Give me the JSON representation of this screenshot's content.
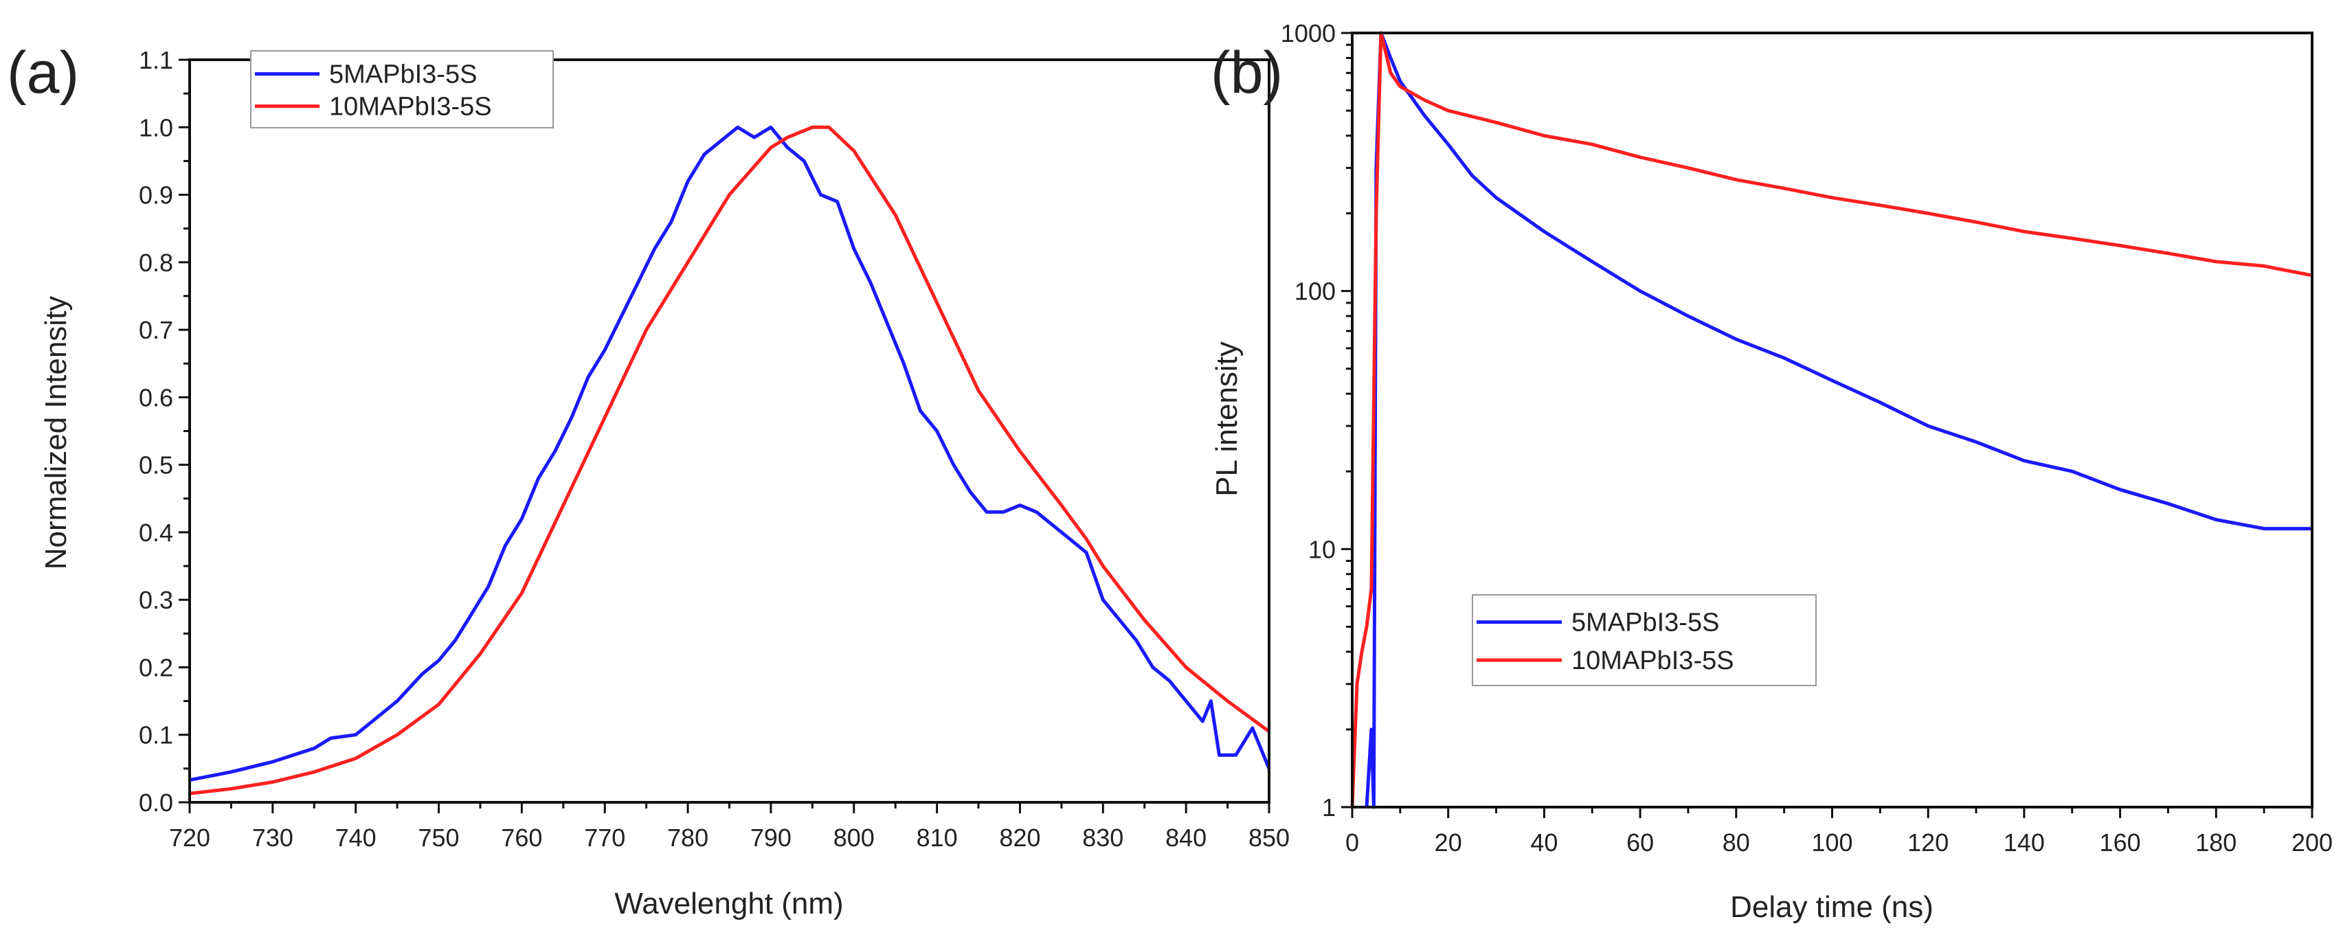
{
  "chart_data": [
    {
      "panel_label": "(a)",
      "type": "line",
      "xlabel": "Wavelenght (nm)",
      "ylabel": "Normalized Intensity",
      "xlim": [
        720,
        850
      ],
      "ylim": [
        0.0,
        1.1
      ],
      "xticks": [
        720,
        730,
        740,
        750,
        760,
        770,
        780,
        790,
        800,
        810,
        820,
        830,
        840,
        850
      ],
      "yticks": [
        "0.0",
        "0.1",
        "0.2",
        "0.3",
        "0.4",
        "0.5",
        "0.6",
        "0.7",
        "0.8",
        "0.9",
        "1.0",
        "1.1"
      ],
      "grid": false,
      "legend_placement": "top-left",
      "series": [
        {
          "name": "5MAPbI3-5S",
          "color": "#1a1aff",
          "x": [
            720,
            725,
            730,
            735,
            737,
            740,
            742,
            745,
            748,
            750,
            752,
            754,
            756,
            758,
            760,
            762,
            764,
            766,
            768,
            770,
            772,
            774,
            776,
            778,
            780,
            782,
            784,
            786,
            788,
            790,
            792,
            794,
            796,
            798,
            800,
            802,
            804,
            806,
            808,
            810,
            812,
            814,
            816,
            818,
            820,
            822,
            824,
            826,
            828,
            830,
            832,
            834,
            836,
            838,
            840,
            842,
            843,
            844,
            846,
            848,
            850
          ],
          "y": [
            0.033,
            0.045,
            0.06,
            0.08,
            0.095,
            0.1,
            0.12,
            0.15,
            0.19,
            0.21,
            0.24,
            0.28,
            0.32,
            0.38,
            0.42,
            0.48,
            0.52,
            0.57,
            0.63,
            0.67,
            0.72,
            0.77,
            0.82,
            0.86,
            0.92,
            0.96,
            0.98,
            1.0,
            0.985,
            1.0,
            0.97,
            0.95,
            0.9,
            0.89,
            0.82,
            0.77,
            0.71,
            0.65,
            0.58,
            0.55,
            0.5,
            0.46,
            0.43,
            0.43,
            0.44,
            0.43,
            0.41,
            0.39,
            0.37,
            0.3,
            0.27,
            0.24,
            0.2,
            0.18,
            0.15,
            0.12,
            0.15,
            0.07,
            0.07,
            0.11,
            0.05
          ]
        },
        {
          "name": "10MAPbI3-5S",
          "color": "#ff2020",
          "x": [
            720,
            725,
            730,
            735,
            740,
            745,
            750,
            755,
            760,
            765,
            770,
            775,
            780,
            785,
            790,
            792,
            795,
            797,
            800,
            805,
            810,
            815,
            820,
            825,
            828,
            830,
            835,
            840,
            845,
            850
          ],
          "y": [
            0.013,
            0.02,
            0.03,
            0.045,
            0.065,
            0.1,
            0.145,
            0.22,
            0.31,
            0.44,
            0.57,
            0.7,
            0.8,
            0.9,
            0.97,
            0.985,
            1.0,
            1.0,
            0.965,
            0.87,
            0.74,
            0.61,
            0.52,
            0.44,
            0.39,
            0.35,
            0.27,
            0.2,
            0.15,
            0.105
          ]
        }
      ]
    },
    {
      "panel_label": "(b)",
      "type": "line",
      "xlabel": "Delay time (ns)",
      "ylabel": "PL intensity",
      "xlim": [
        0,
        200
      ],
      "ylim": [
        1,
        1000
      ],
      "yscale": "log",
      "xticks": [
        0,
        20,
        40,
        60,
        80,
        100,
        120,
        140,
        160,
        180,
        200
      ],
      "yticks": [
        "1",
        "10",
        "100",
        "1000"
      ],
      "grid": false,
      "legend_placement": "lower-left",
      "series": [
        {
          "name": "5MAPbI3-5S",
          "color": "#1a1aff",
          "x": [
            3,
            4,
            4.5,
            5,
            6,
            8,
            10,
            15,
            20,
            25,
            30,
            40,
            50,
            60,
            70,
            80,
            90,
            100,
            110,
            120,
            130,
            140,
            150,
            160,
            170,
            180,
            190,
            200
          ],
          "y": [
            1,
            2,
            1,
            300,
            1000,
            800,
            650,
            480,
            370,
            280,
            230,
            170,
            130,
            100,
            80,
            65,
            55,
            45,
            37,
            30,
            26,
            22,
            20,
            17,
            15,
            13,
            12,
            12
          ]
        },
        {
          "name": "10MAPbI3-5S",
          "color": "#ff2020",
          "x": [
            0,
            1,
            2,
            3,
            4,
            5,
            6,
            8,
            10,
            15,
            20,
            30,
            40,
            50,
            60,
            70,
            80,
            90,
            100,
            110,
            120,
            130,
            140,
            150,
            160,
            170,
            180,
            190,
            200
          ],
          "y": [
            1,
            3,
            4,
            5,
            7,
            200,
            1000,
            700,
            620,
            550,
            500,
            450,
            400,
            370,
            330,
            300,
            270,
            250,
            230,
            215,
            200,
            185,
            170,
            160,
            150,
            140,
            130,
            125,
            115
          ]
        }
      ]
    }
  ]
}
